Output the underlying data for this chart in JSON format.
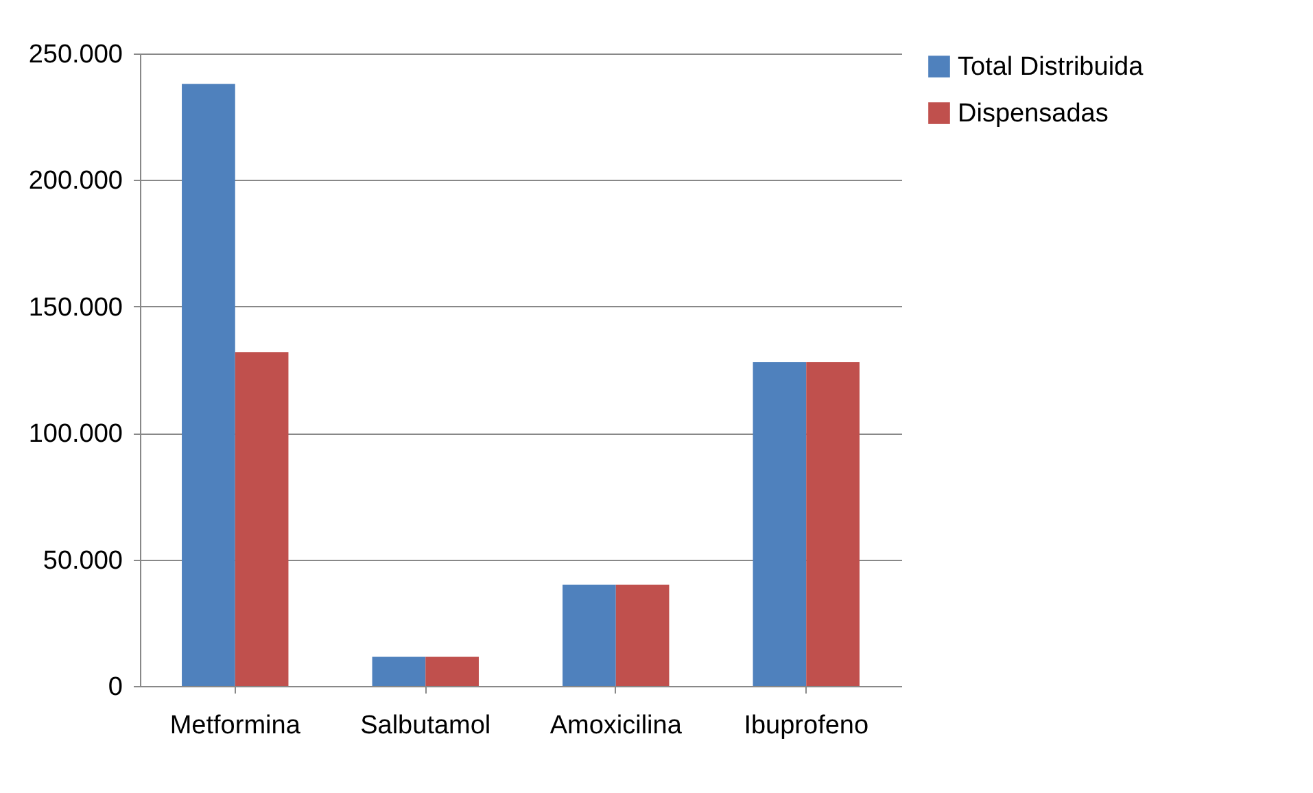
{
  "chart_data": {
    "type": "bar",
    "categories": [
      "Metformina",
      "Salbutamol",
      "Amoxicilina",
      "Ibuprofeno"
    ],
    "series": [
      {
        "name": "Total Distribuida",
        "color": "#4f81bd",
        "values": [
          238000,
          11500,
          40000,
          128000
        ]
      },
      {
        "name": "Dispensadas",
        "color": "#c0504d",
        "values": [
          132000,
          11500,
          40000,
          128000
        ]
      }
    ],
    "ylim": [
      0,
      250000
    ],
    "yticks": [
      {
        "value": 0,
        "label": "0"
      },
      {
        "value": 50000,
        "label": "50.000"
      },
      {
        "value": 100000,
        "label": "100.000"
      },
      {
        "value": 150000,
        "label": "150.000"
      },
      {
        "value": 200000,
        "label": "200.000"
      },
      {
        "value": 250000,
        "label": "250.000"
      }
    ],
    "grid": "y",
    "legend": "right"
  }
}
